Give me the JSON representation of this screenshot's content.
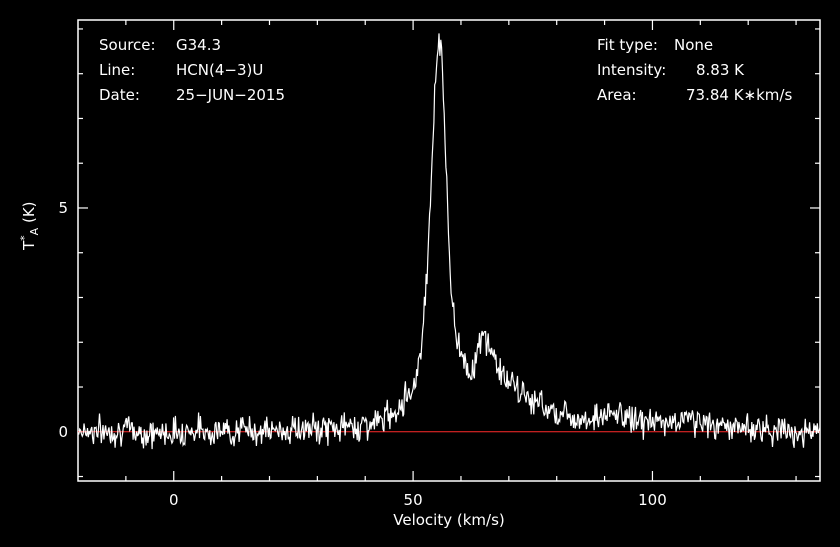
{
  "header": {
    "source_label": "Source:",
    "source_value": "G34.3",
    "line_label": "Line:",
    "line_value": "HCN(4−3)U",
    "date_label": "Date:",
    "date_value": "25−JUN−2015",
    "fit_label": "Fit type:",
    "fit_value": "None",
    "intensity_label": "Intensity:",
    "intensity_value": "8.83 K",
    "area_label": "Area:",
    "area_value": "73.84 K∗km/s"
  },
  "chart_data": {
    "type": "line",
    "xlabel": "Velocity (km/s)",
    "ylabel_main": "T",
    "ylabel_sup": "*",
    "ylabel_sub": "A",
    "ylabel_unit": "(K)",
    "xlim": [
      -20,
      135
    ],
    "ylim": [
      -1.1,
      9.2
    ],
    "x_ticks": [
      0,
      50,
      100
    ],
    "x_tick_labels": [
      "0",
      "50",
      "100"
    ],
    "y_ticks": [
      0,
      5
    ],
    "y_tick_labels": [
      "0",
      "5"
    ],
    "baseline": 0,
    "colors": {
      "background": "#000000",
      "axes": "#ffffff",
      "spectrum": "#ffffff",
      "baseline": "#ff2a2a"
    },
    "series": [
      {
        "x": [
          -20,
          -15,
          -10,
          -5,
          0,
          5,
          10,
          15,
          20,
          25,
          30,
          35,
          40,
          42,
          44,
          46,
          48,
          50,
          51,
          52,
          53,
          54,
          55,
          55.5,
          56,
          56.5,
          57,
          58,
          59,
          60,
          61,
          62,
          63,
          64,
          65,
          66,
          68,
          70,
          72,
          75,
          78,
          80,
          83,
          86,
          90,
          93,
          95,
          100,
          105,
          108,
          110,
          115,
          120,
          125,
          130,
          135
        ],
        "y": [
          0.05,
          0.0,
          0.05,
          -0.05,
          0.0,
          0.05,
          0.0,
          0.05,
          0.0,
          0.05,
          0.05,
          0.1,
          0.15,
          0.2,
          0.3,
          0.45,
          0.7,
          1.0,
          1.4,
          2.2,
          3.8,
          6.2,
          8.5,
          8.83,
          8.4,
          7.2,
          5.5,
          3.0,
          2.2,
          1.8,
          1.5,
          1.3,
          1.6,
          2.0,
          2.1,
          1.9,
          1.4,
          1.1,
          0.9,
          0.7,
          0.55,
          0.45,
          0.35,
          0.3,
          0.35,
          0.4,
          0.3,
          0.2,
          0.2,
          0.35,
          0.2,
          0.1,
          0.1,
          0.05,
          0.0,
          0.0
        ]
      }
    ]
  }
}
